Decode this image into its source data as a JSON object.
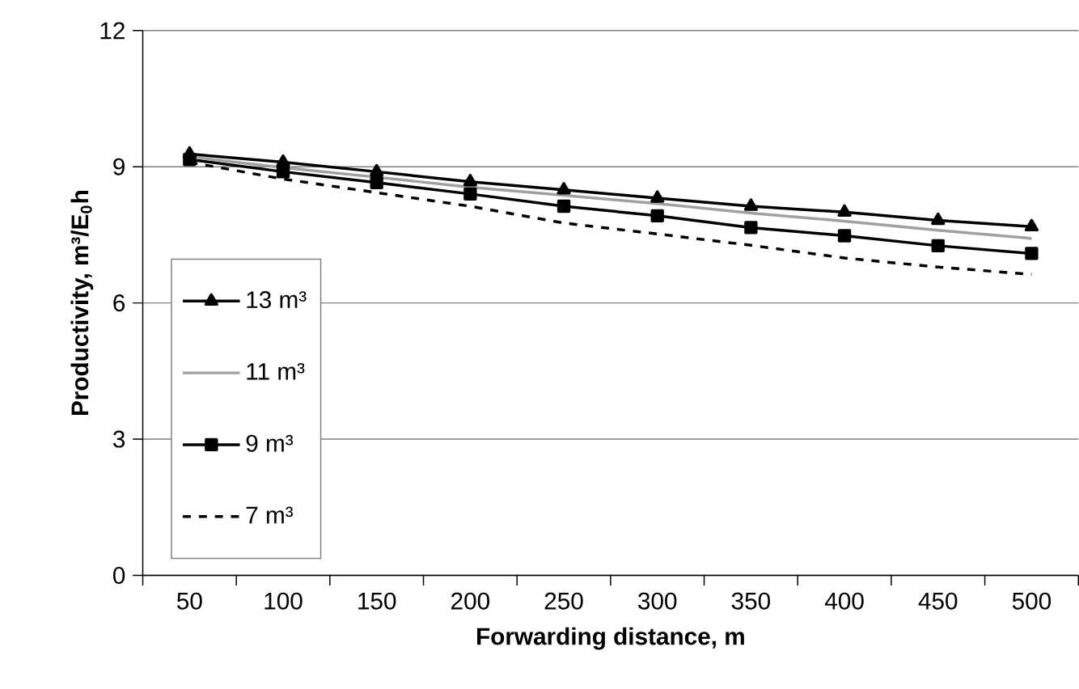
{
  "chart_data": {
    "type": "line",
    "xlabel": "Forwarding distance, m",
    "ylabel": "Productivity, m³/E$_{0}$h",
    "categories": [
      "50",
      "100",
      "150",
      "200",
      "250",
      "300",
      "350",
      "400",
      "450",
      "500"
    ],
    "ylim": [
      0,
      12
    ],
    "yticks": [
      0,
      3,
      6,
      9,
      12
    ],
    "grid": "y",
    "legend": "left",
    "series": [
      {
        "name": "13 m³",
        "color": "#000000",
        "marker": "triangle",
        "line_style": "solid",
        "values": [
          9.28,
          9.1,
          8.89,
          8.67,
          8.49,
          8.31,
          8.13,
          8.0,
          7.82,
          7.68
        ]
      },
      {
        "name": "11 m³",
        "color": "#a0a0a0",
        "marker": "none",
        "line_style": "solid",
        "values": [
          9.22,
          8.98,
          8.77,
          8.55,
          8.37,
          8.19,
          7.98,
          7.8,
          7.6,
          7.42
        ]
      },
      {
        "name": "9 m³",
        "color": "#000000",
        "marker": "square",
        "line_style": "solid",
        "values": [
          9.16,
          8.89,
          8.65,
          8.4,
          8.13,
          7.92,
          7.66,
          7.48,
          7.26,
          7.09
        ]
      },
      {
        "name": "7 m³",
        "color": "#000000",
        "marker": "none",
        "line_style": "dashed",
        "values": [
          9.1,
          8.73,
          8.43,
          8.13,
          7.76,
          7.52,
          7.27,
          6.99,
          6.79,
          6.63
        ]
      }
    ]
  }
}
